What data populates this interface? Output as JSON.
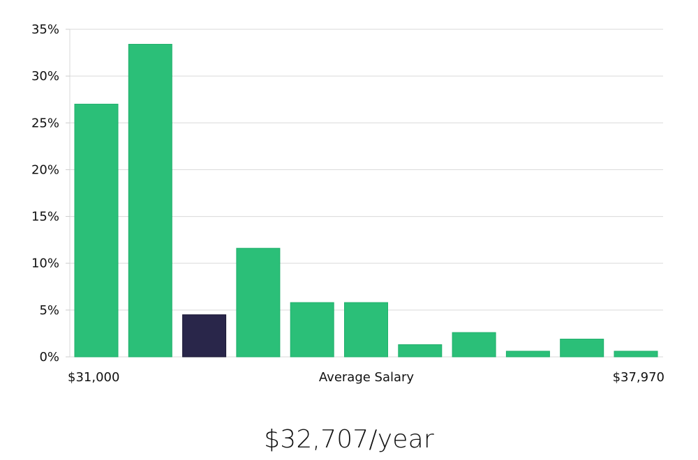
{
  "chart_data": {
    "type": "bar",
    "values": [
      27.0,
      33.4,
      4.5,
      11.6,
      5.8,
      5.8,
      1.3,
      2.6,
      0.6,
      1.9,
      0.6
    ],
    "highlight_index": 2,
    "ylim": [
      0,
      35
    ],
    "yticks": [
      0,
      5,
      10,
      15,
      20,
      25,
      30,
      35
    ],
    "ytick_suffix": "%",
    "x_start_label": "$31,000",
    "x_center_label": "Average Salary",
    "x_end_label": "$37,970",
    "grid": true,
    "colors": {
      "bar": "#2bbf78",
      "bar_stroke": "#20b06c",
      "highlight": "#29264a",
      "highlight_stroke": "#1a1833",
      "grid": "#d9d9d9",
      "axis": "#cccccc"
    }
  },
  "summary": {
    "salary_value": "$32,707/year"
  }
}
